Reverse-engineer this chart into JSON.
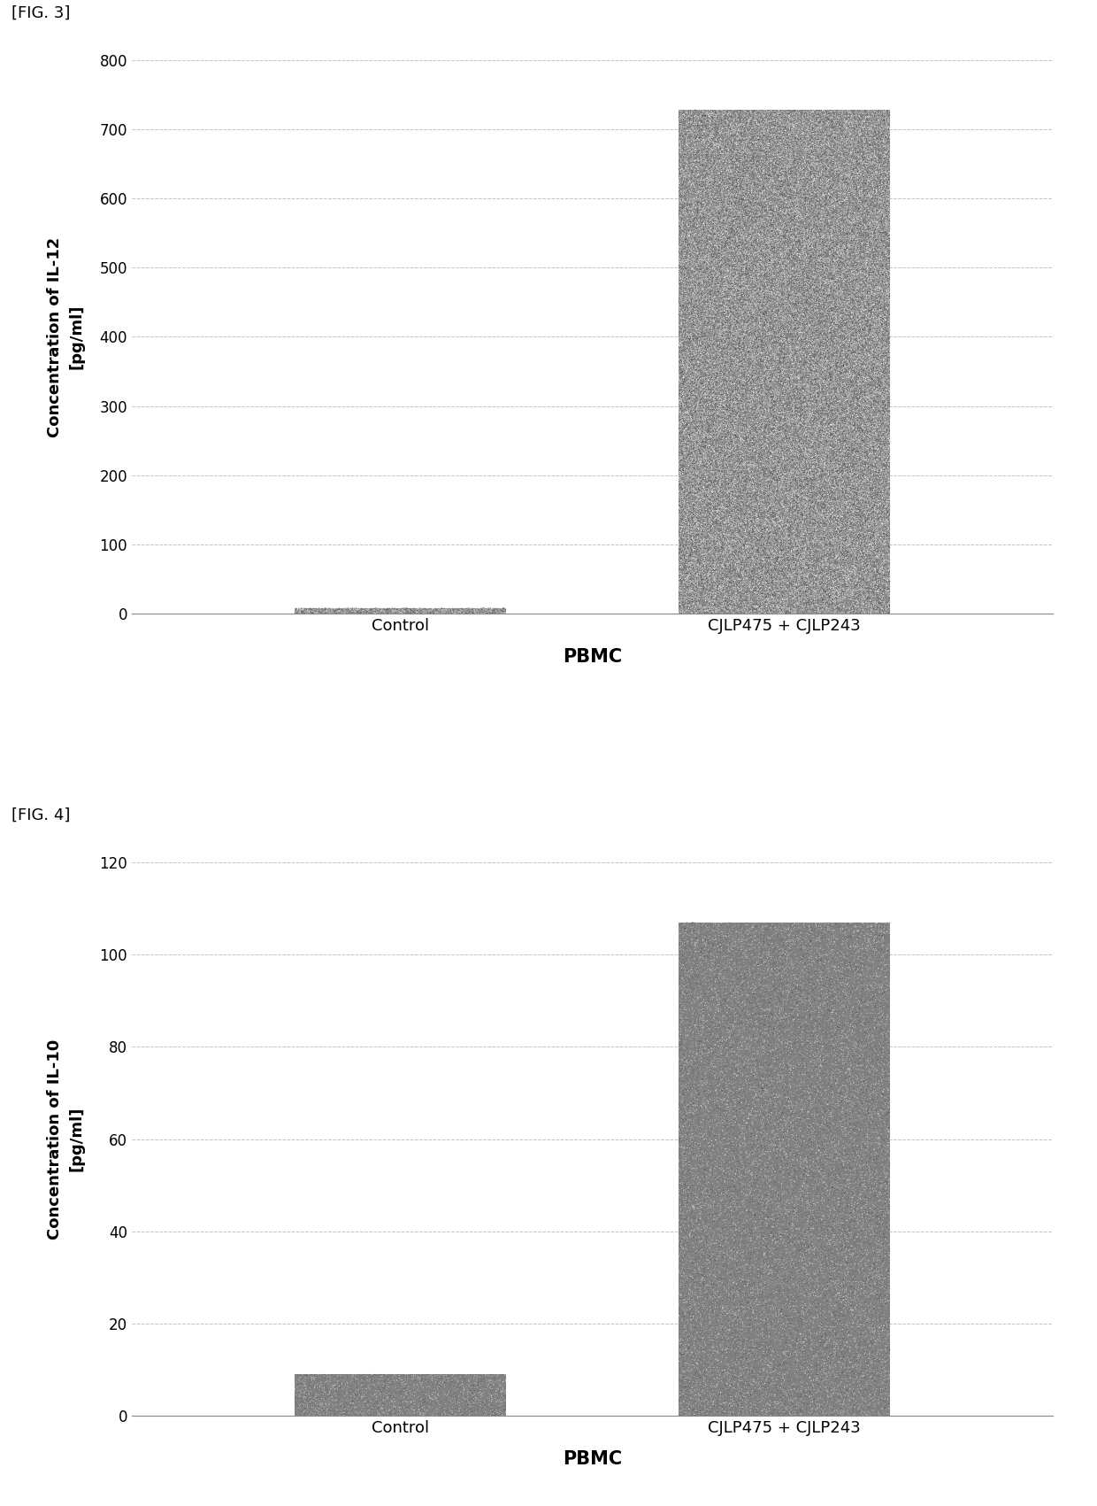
{
  "fig3": {
    "label": "[FIG. 3]",
    "categories": [
      "Control",
      "CJLP475 + CJLP243"
    ],
    "values": [
      8,
      728
    ],
    "bar_color": "#808080",
    "ylabel": "Concentration of IL-12\n[pg/ml]",
    "xlabel": "PBMC",
    "ylim": [
      0,
      800
    ],
    "yticks": [
      0,
      100,
      200,
      300,
      400,
      500,
      600,
      700,
      800
    ],
    "bar_width": 0.55
  },
  "fig4": {
    "label": "[FIG. 4]",
    "categories": [
      "Control",
      "CJLP475 + CJLP243"
    ],
    "values": [
      9,
      107
    ],
    "bar_color": "#808080",
    "ylabel": "Concentration of IL-10\n[pg/ml]",
    "xlabel": "PBMC",
    "ylim": [
      0,
      120
    ],
    "yticks": [
      0,
      20,
      40,
      60,
      80,
      100,
      120
    ],
    "bar_width": 0.55
  },
  "background_color": "#ffffff",
  "grid_color": "#bbbbbb",
  "tick_fontsize": 12,
  "label_fontsize": 13,
  "xlabel_fontsize": 15,
  "fig_label_fontsize": 13,
  "noise_density": 0.35,
  "noise_color_light": "#c0c0c0",
  "noise_color_dark": "#505050"
}
